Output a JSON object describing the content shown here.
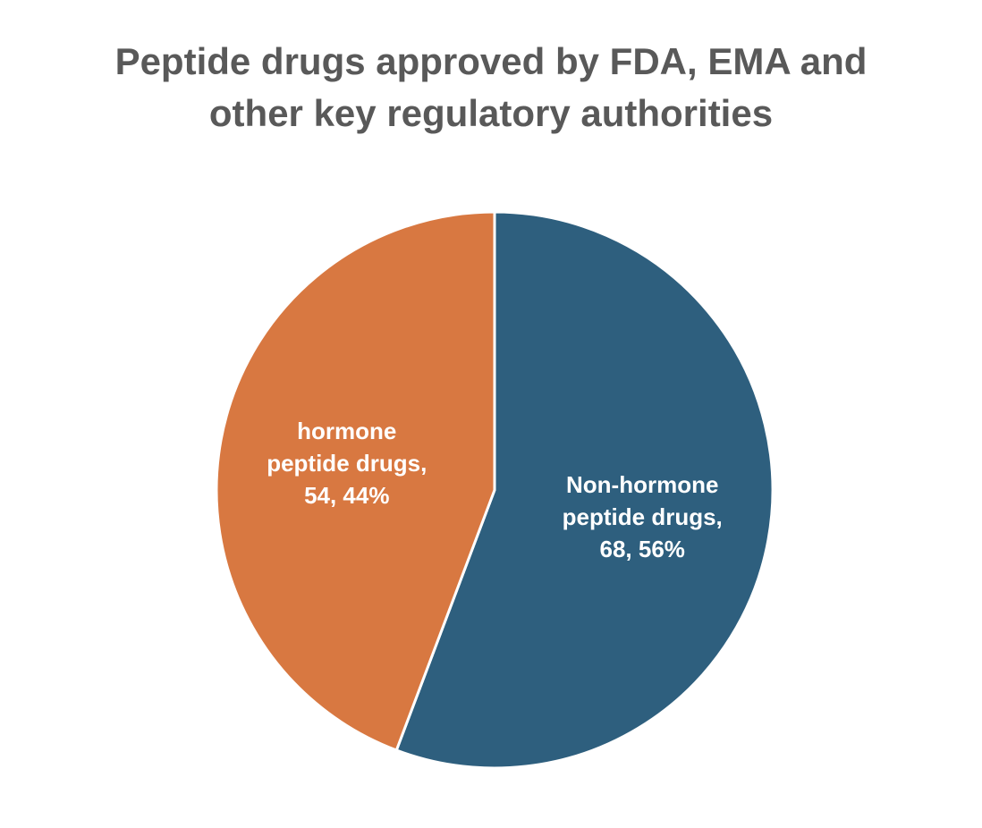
{
  "chart_data": {
    "type": "pie",
    "title_lines": [
      "Peptide drugs approved by FDA, EMA and",
      "other key regulatory authorities"
    ],
    "slices": [
      {
        "name": "Non-hormone peptide drugs",
        "value": 68,
        "percent": 56,
        "color": "#2e5f7e",
        "label_lines": [
          "Non-hormone",
          "peptide drugs,",
          "68, 56%"
        ]
      },
      {
        "name": "hormone peptide drugs",
        "value": 54,
        "percent": 44,
        "color": "#d87841",
        "label_lines": [
          "hormone",
          "peptide drugs,",
          "54, 44%"
        ]
      }
    ],
    "start_angle": "12 o'clock",
    "direction": "clockwise",
    "slice_border_color": "#ffffff",
    "legend": "none",
    "title_color": "#595959"
  }
}
